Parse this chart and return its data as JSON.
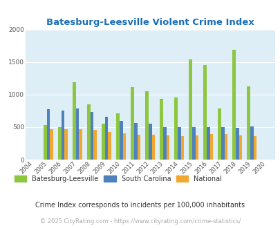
{
  "title": "Batesburg-Leesville Violent Crime Index",
  "title_color": "#1a6fbb",
  "years": [
    2004,
    2005,
    2006,
    2007,
    2008,
    2009,
    2010,
    2011,
    2012,
    2013,
    2014,
    2015,
    2016,
    2017,
    2018,
    2019,
    2020
  ],
  "batesburg": [
    0,
    530,
    495,
    1190,
    855,
    555,
    710,
    1115,
    1055,
    935,
    960,
    1545,
    1455,
    785,
    1695,
    1130,
    0
  ],
  "south_carolina": [
    0,
    775,
    755,
    790,
    730,
    660,
    595,
    565,
    555,
    495,
    505,
    500,
    500,
    495,
    490,
    510,
    0
  ],
  "national": [
    0,
    470,
    470,
    465,
    455,
    430,
    400,
    385,
    380,
    370,
    365,
    375,
    390,
    395,
    375,
    365,
    0
  ],
  "bar_width": 0.22,
  "colors": {
    "batesburg": "#8dc63f",
    "south_carolina": "#4f81bd",
    "national": "#f0a830"
  },
  "bg_color": "#ddeef6",
  "ylim": [
    0,
    2000
  ],
  "yticks": [
    0,
    500,
    1000,
    1500,
    2000
  ],
  "legend_labels": [
    "Batesburg-Leesville",
    "South Carolina",
    "National"
  ],
  "footnote": "Crime Index corresponds to incidents per 100,000 inhabitants",
  "copyright": "© 2025 CityRating.com - https://www.cityrating.com/crime-statistics/",
  "footnote_color": "#333333",
  "copyright_color": "#aaaaaa",
  "grid_color": "#ffffff"
}
